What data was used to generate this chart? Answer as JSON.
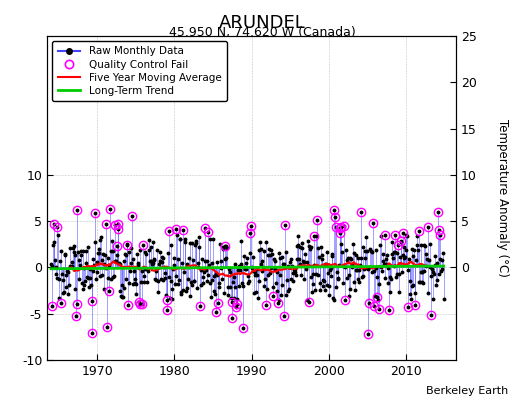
{
  "title": "ARUNDEL",
  "subtitle": "45.950 N, 74.620 W (Canada)",
  "ylabel": "Temperature Anomaly (°C)",
  "credit": "Berkeley Earth",
  "xlim": [
    1963.5,
    2016.5
  ],
  "ylim": [
    -10,
    25
  ],
  "yticks_left": [
    -10,
    -5,
    0,
    5,
    10
  ],
  "yticks_right": [
    0,
    5,
    10,
    15,
    20,
    25
  ],
  "xticks": [
    1970,
    1980,
    1990,
    2000,
    2010
  ],
  "raw_color": "#4444ff",
  "ma_color": "#ff0000",
  "trend_color": "#00cc00",
  "qc_color": "#ff00ff",
  "bg_color": "#ffffff",
  "title_fontsize": 13,
  "subtitle_fontsize": 9,
  "seed": 17,
  "start_year": 1964,
  "n_months": 612,
  "qc_threshold": 3.5,
  "trend_slope": 0.04,
  "noise_scale": 2.2
}
